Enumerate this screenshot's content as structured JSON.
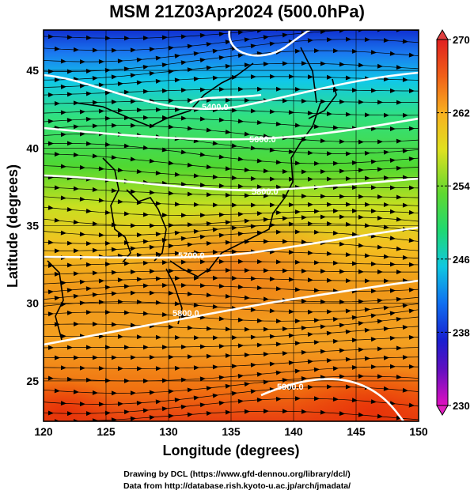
{
  "title": "MSM 21Z03Apr2024 (500.0hPa)",
  "axes": {
    "xlabel": "Longitude (degrees)",
    "ylabel": "Latitude  (degrees)",
    "x_ticks": [
      "120",
      "125",
      "130",
      "135",
      "140",
      "145",
      "150"
    ],
    "y_ticks": [
      "25",
      "30",
      "35",
      "40",
      "45"
    ],
    "xlim": [
      120,
      150
    ],
    "ylim": [
      22.4,
      47.6
    ]
  },
  "colorbar": {
    "ticks": [
      "270",
      "262",
      "254",
      "246",
      "238",
      "230"
    ],
    "range": [
      230,
      270
    ]
  },
  "contour_labels": [
    "5400.0",
    "5600.0",
    "5800.0",
    "5700.0",
    "5800.0",
    "5900.0"
  ],
  "credits": {
    "line1": "Drawing by DCL (https://www.gfd-dennou.org/library/dcl/)",
    "line2": "Data from http://database.rish.kyoto-u.ac.jp/arch/jmadata/"
  },
  "colors": {
    "field_north": "#2040e0",
    "field_mid": "#40d840",
    "field_south": "#f05010",
    "contour": "#ffffff",
    "streamline": "#000000"
  }
}
